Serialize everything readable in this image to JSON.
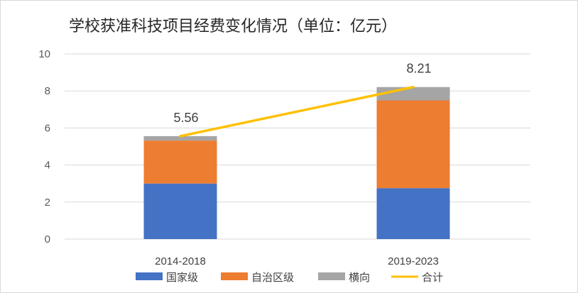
{
  "chart_data": {
    "type": "bar",
    "stacked": true,
    "title": "学校获准科技项目经费变化情况（单位：亿元）",
    "categories": [
      "2014-2018",
      "2019-2023"
    ],
    "series": [
      {
        "name": "国家级",
        "kind": "bar",
        "color": "#4472C4",
        "values": [
          3.0,
          2.75
        ]
      },
      {
        "name": "自治区级",
        "kind": "bar",
        "color": "#ED7D31",
        "values": [
          2.32,
          4.74
        ]
      },
      {
        "name": "横向",
        "kind": "bar",
        "color": "#A5A5A5",
        "values": [
          0.24,
          0.72
        ]
      },
      {
        "name": "合计",
        "kind": "line",
        "color": "#FFC000",
        "values": [
          5.56,
          8.21
        ]
      }
    ],
    "data_labels": [
      "5.56",
      "8.21"
    ],
    "ylim": [
      0,
      10
    ],
    "yticks": [
      0,
      2,
      4,
      6,
      8,
      10
    ],
    "xlabel": "",
    "ylabel": "",
    "grid": true,
    "legend_position": "bottom"
  }
}
